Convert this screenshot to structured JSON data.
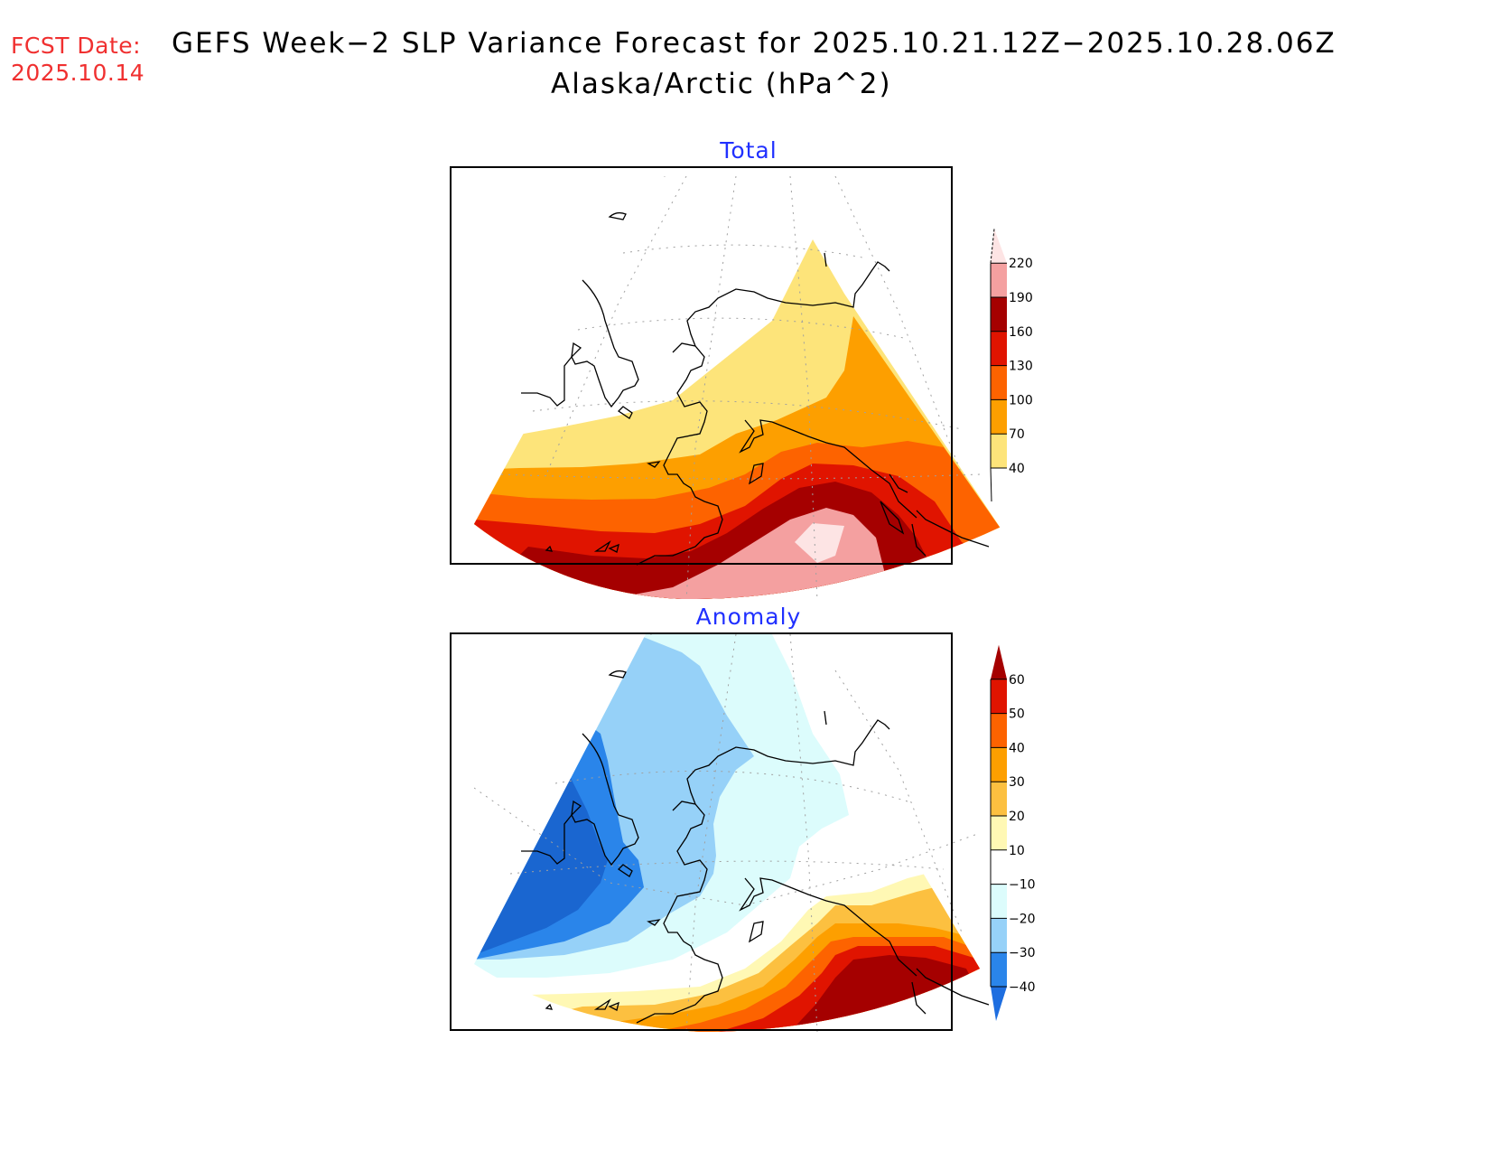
{
  "header": {
    "fcst_label": "FCST Date:",
    "fcst_date": "2025.10.14",
    "title": "GEFS Week−2 SLP Variance Forecast for 2025.10.21.12Z−2025.10.28.06Z",
    "subtitle": "Alaska/Arctic (hPa^2)"
  },
  "panels": [
    {
      "title": "Total",
      "colorbar": {
        "levels": [
          "40",
          "70",
          "100",
          "130",
          "160",
          "190",
          "220"
        ],
        "colors": [
          "#fde47a",
          "#fd9f00",
          "#fd6300",
          "#e01400",
          "#a50000",
          "#f4a0a0",
          "#fde4e4"
        ]
      }
    },
    {
      "title": "Anomaly",
      "colorbar": {
        "levels": [
          "-40",
          "-30",
          "-20",
          "-10",
          "10",
          "20",
          "30",
          "40",
          "50",
          "60"
        ],
        "colors": [
          "#1e6ee0",
          "#2a85ea",
          "#96d1f8",
          "#dcfcfc",
          "#ffffff",
          "#fff8b4",
          "#fcc040",
          "#fd9f00",
          "#fd6300",
          "#e01400",
          "#a50000"
        ]
      }
    }
  ],
  "chart_data": [
    {
      "type": "heatmap",
      "title": "Total",
      "region": "Alaska/Arctic",
      "units": "hPa^2",
      "legend": "right",
      "levels": [
        40,
        70,
        100,
        130,
        160,
        190,
        220
      ],
      "pattern": "Variance increases southward; max (>220) over Gulf of Alaska, 160-220 band across North Pacific/Aleutians, <40 over Arctic Ocean and Siberia"
    },
    {
      "type": "heatmap",
      "title": "Anomaly",
      "region": "Alaska/Arctic",
      "units": "hPa^2",
      "legend": "right",
      "levels": [
        -40,
        -30,
        -20,
        -10,
        10,
        20,
        30,
        40,
        50,
        60
      ],
      "pattern": "Negative anomalies (< -40) over eastern Siberia/Bering Sea, -10 to -30 over western Alaska; positive anomalies (>60) over Gulf of Alaska"
    }
  ]
}
